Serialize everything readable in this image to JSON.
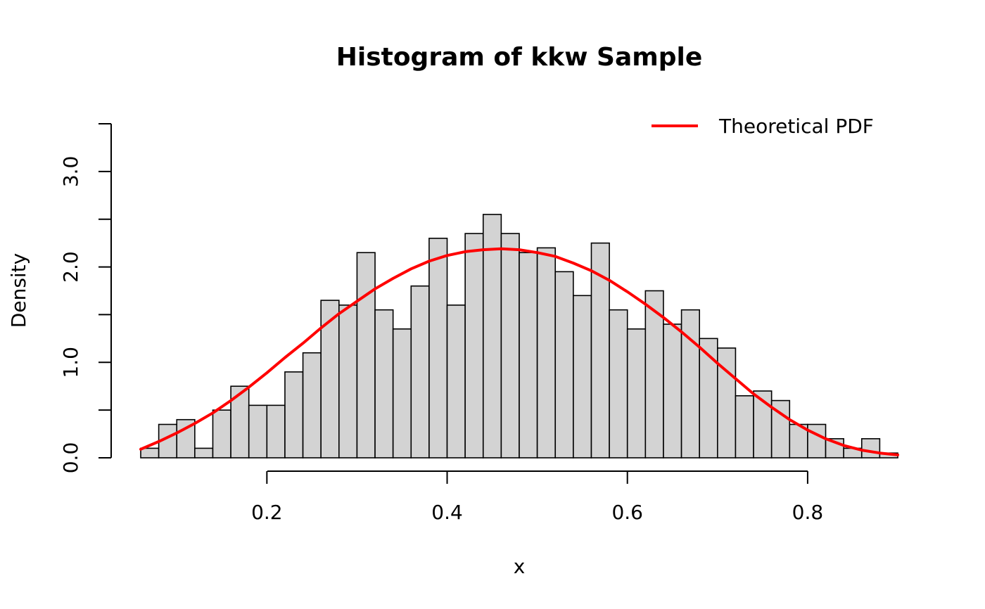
{
  "chart_data": {
    "type": "bar",
    "title": "Histogram of kkw Sample",
    "xlabel": "x",
    "ylabel": "Density",
    "xlim": [
      0.06,
      0.9
    ],
    "ylim": [
      0,
      3.5
    ],
    "x_ticks": [
      0.2,
      0.4,
      0.6,
      0.8
    ],
    "x_tick_labels": [
      "0.2",
      "0.4",
      "0.6",
      "0.8"
    ],
    "y_ticks": [
      0,
      0.5,
      1.0,
      1.5,
      2.0,
      2.5,
      3.0,
      3.5
    ],
    "y_tick_labels": [
      "0.0",
      "",
      "1.0",
      "",
      "2.0",
      "",
      "3.0",
      ""
    ],
    "grid": false,
    "legend_position": "top-right",
    "bin_start": 0.06,
    "bin_width": 0.02,
    "bar_color": "#d3d3d3",
    "bar_edge_color": "#000000",
    "bin_densities": [
      0.1,
      0.35,
      0.4,
      0.1,
      0.5,
      0.75,
      0.55,
      0.55,
      0.9,
      1.1,
      1.65,
      1.6,
      2.15,
      1.55,
      1.35,
      1.8,
      2.3,
      1.6,
      2.35,
      2.55,
      2.35,
      2.15,
      2.2,
      1.95,
      1.7,
      2.25,
      1.55,
      1.35,
      1.75,
      1.4,
      1.55,
      1.25,
      1.15,
      0.65,
      0.7,
      0.6,
      0.35,
      0.35,
      0.2,
      0.1,
      0.2,
      0.05
    ],
    "series": [
      {
        "name": "Theoretical PDF",
        "color": "#ff0000",
        "x": [
          0.06,
          0.08,
          0.1,
          0.12,
          0.14,
          0.16,
          0.18,
          0.2,
          0.22,
          0.24,
          0.26,
          0.28,
          0.3,
          0.32,
          0.34,
          0.36,
          0.38,
          0.4,
          0.42,
          0.44,
          0.46,
          0.48,
          0.5,
          0.52,
          0.54,
          0.56,
          0.58,
          0.6,
          0.62,
          0.64,
          0.66,
          0.68,
          0.7,
          0.72,
          0.74,
          0.76,
          0.78,
          0.8,
          0.82,
          0.84,
          0.86,
          0.88,
          0.9
        ],
        "y": [
          0.09,
          0.17,
          0.26,
          0.36,
          0.47,
          0.6,
          0.74,
          0.89,
          1.05,
          1.2,
          1.36,
          1.51,
          1.64,
          1.77,
          1.88,
          1.98,
          2.06,
          2.12,
          2.16,
          2.18,
          2.19,
          2.18,
          2.15,
          2.11,
          2.04,
          1.96,
          1.86,
          1.74,
          1.61,
          1.47,
          1.32,
          1.16,
          0.99,
          0.83,
          0.67,
          0.53,
          0.4,
          0.29,
          0.2,
          0.13,
          0.08,
          0.05,
          0.03
        ]
      }
    ]
  }
}
